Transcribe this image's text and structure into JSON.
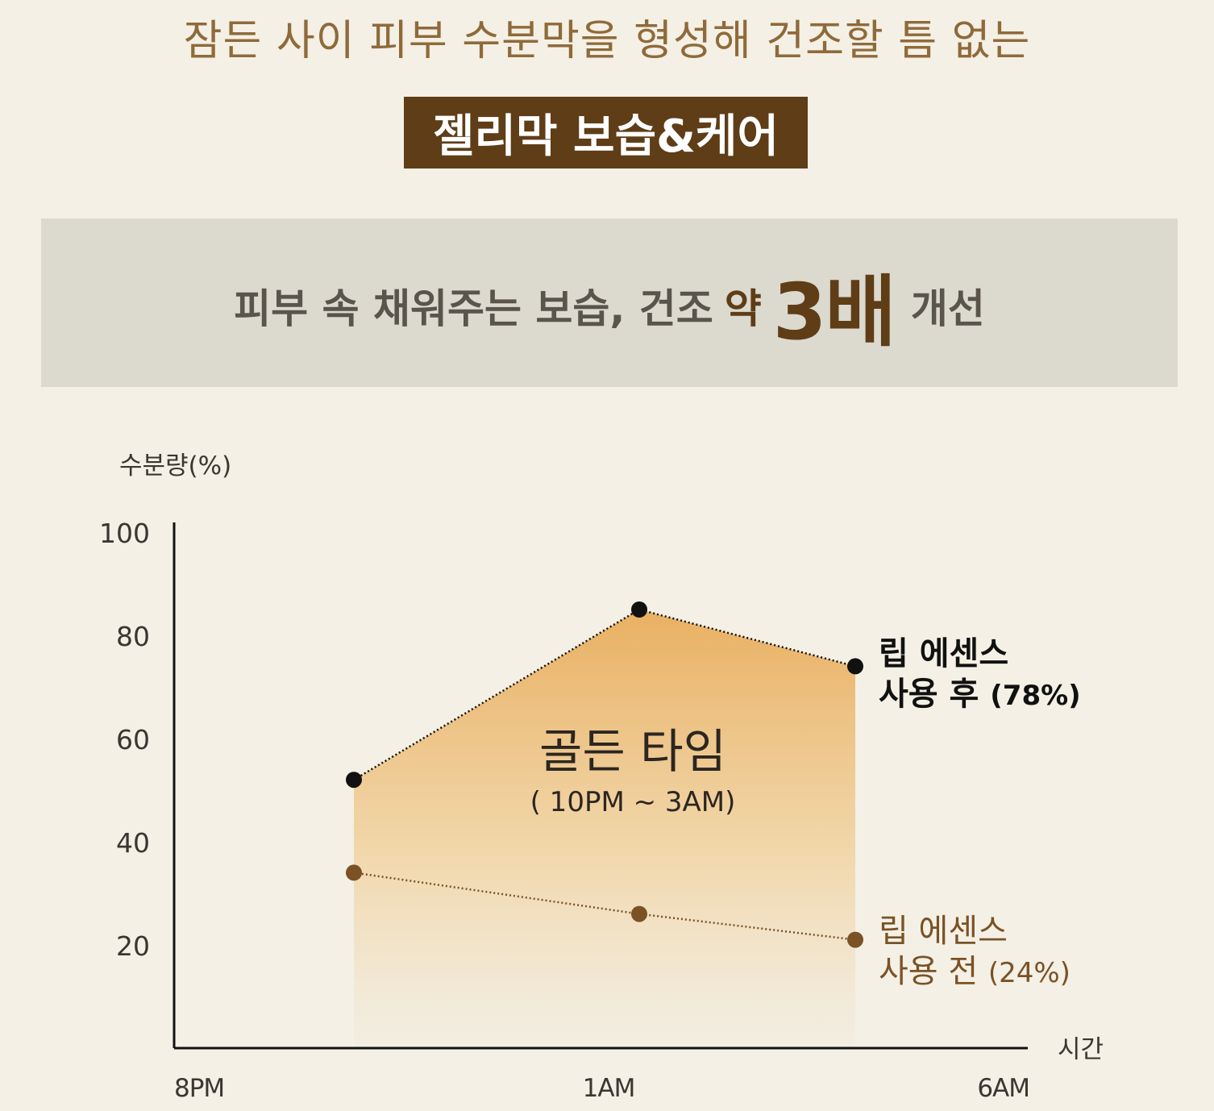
{
  "header": {
    "headline": "잠든 사이 피부 수분막을 형성해 건조할 틈 없는",
    "badge": "젤리막 보습&케어"
  },
  "banner": {
    "main": "피부 속 채워주는 보습, 건조",
    "yak": "약",
    "big": "3배",
    "tail": "개선"
  },
  "chart_data": {
    "type": "line",
    "ylabel": "수분량(%)",
    "xlabel": "시간",
    "ylim": [
      0,
      100
    ],
    "yticks": [
      "100",
      "80",
      "60",
      "40",
      "20"
    ],
    "xticks": [
      "8PM",
      "1AM",
      "6AM"
    ],
    "points_x": [
      3,
      6,
      9
    ],
    "series": [
      {
        "name_line1": "립 에센스",
        "name_line2": "사용 후",
        "name_value": "(78%)",
        "values": [
          52,
          85,
          74
        ],
        "color": "#111111"
      },
      {
        "name_line1": "립 에센스",
        "name_line2": "사용 전",
        "name_value": "(24%)",
        "values": [
          34,
          26,
          21
        ],
        "color": "#7a5226"
      }
    ],
    "annotation": {
      "title": "골든 타임",
      "subtitle": "( 10PM ~ 3AM)"
    },
    "fill_top_color": "#e9b062",
    "fill_bottom_color": "#f2ece0"
  }
}
